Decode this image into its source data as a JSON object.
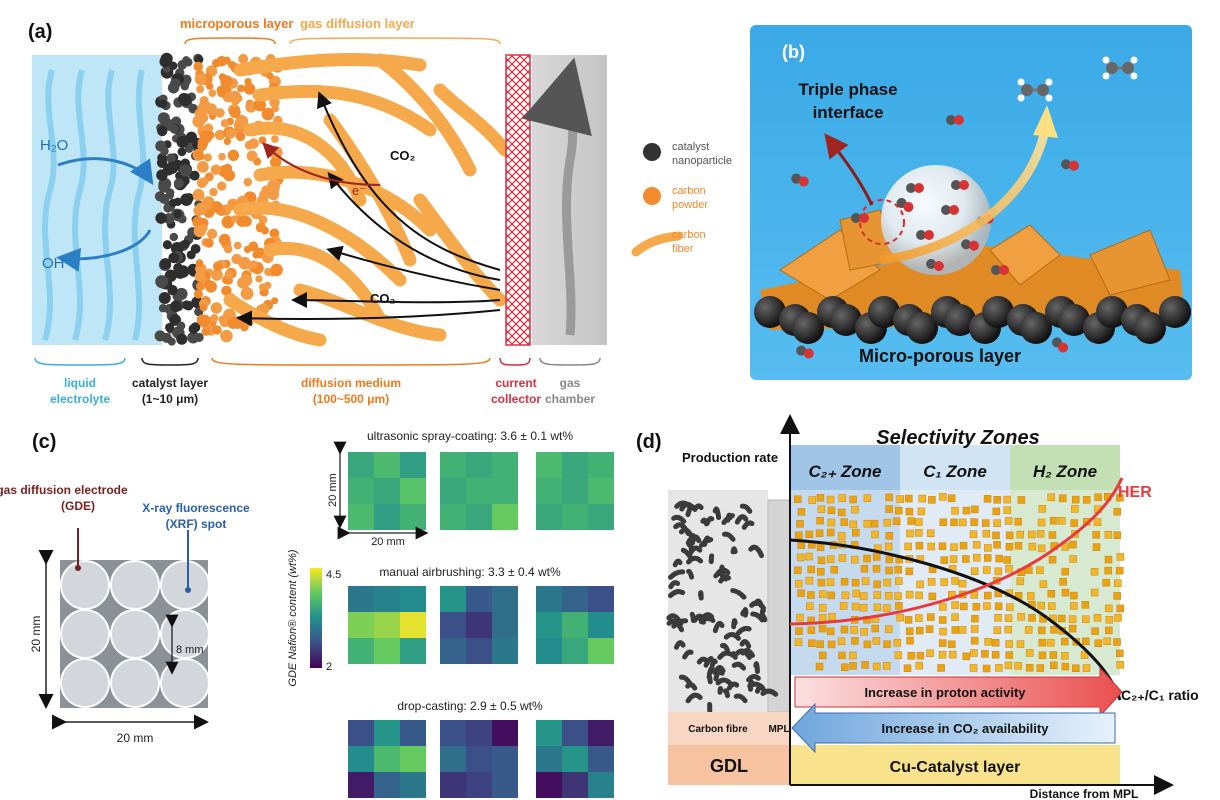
{
  "panel_a": {
    "label": "(a)",
    "top_labels": {
      "microporous": "microporous layer",
      "gdl": "gas diffusion layer"
    },
    "h2o": "H₂O",
    "oh": "OH⁻",
    "co2_1": "CO₂",
    "co2_2": "CO₂",
    "electron": "e⁻",
    "legend": [
      {
        "line1": "catalyst",
        "line2": "nanoparticle",
        "color": "#333333"
      },
      {
        "line1": "carbon",
        "line2": "powder",
        "color": "#f28a2e"
      },
      {
        "line1": "carbon",
        "line2": "fiber",
        "color": "#f6a94a"
      }
    ],
    "bottom_labels": [
      {
        "line1": "liquid",
        "line2": "electrolyte",
        "color": "#3aaee0"
      },
      {
        "line1": "catalyst layer",
        "line2": "(1~10 μm)",
        "color": "#222222"
      },
      {
        "line1": "diffusion medium",
        "line2": "(100~500 μm)",
        "color": "#f07a1a"
      },
      {
        "line1": "current",
        "line2": "collector",
        "color": "#d83040"
      },
      {
        "line1": "gas",
        "line2": "chamber",
        "color": "#888888"
      }
    ]
  },
  "panel_b": {
    "label": "(b)",
    "triple_line1": "Triple phase",
    "triple_line2": "interface",
    "mpl": "Micro-porous layer"
  },
  "panel_c": {
    "label": "(c)",
    "gde_line1": "gas diffusion electrode",
    "gde_line2": "(GDE)",
    "xrf_line1": "X-ray fluorescence",
    "xrf_line2": "(XRF) spot",
    "dim_20mm_v": "20 mm",
    "dim_20mm_h": "20 mm",
    "dim_8mm": "8 mm",
    "colorbar_label": "GDE Nafion® content (wt%)",
    "colorbar_max": "4.5",
    "colorbar_min": "2",
    "rows": [
      {
        "title": "ultrasonic spray-coating: 3.6 ± 0.1 wt%"
      },
      {
        "title": "manual airbrushing: 3.3 ± 0.4 wt%"
      },
      {
        "title": "drop-casting: 2.9 ± 0.5 wt%"
      }
    ],
    "heat_dim_v": "20 mm",
    "heat_dim_h": "20 mm",
    "heatmaps": [
      [
        [
          [
            3.5,
            3.7,
            3.4
          ],
          [
            3.6,
            3.5,
            3.8
          ],
          [
            3.7,
            3.4,
            3.6
          ]
        ],
        [
          [
            3.6,
            3.5,
            3.6
          ],
          [
            3.5,
            3.6,
            3.6
          ],
          [
            3.6,
            3.5,
            3.9
          ]
        ],
        [
          [
            3.7,
            3.5,
            3.6
          ],
          [
            3.6,
            3.5,
            3.7
          ],
          [
            3.5,
            3.6,
            3.5
          ]
        ]
      ],
      [
        [
          [
            3.0,
            3.1,
            3.2
          ],
          [
            4.0,
            4.1,
            4.4
          ],
          [
            3.6,
            3.9,
            3.4
          ]
        ],
        [
          [
            3.3,
            2.7,
            2.9
          ],
          [
            2.6,
            2.4,
            2.9
          ],
          [
            2.8,
            2.6,
            3.0
          ]
        ],
        [
          [
            3.0,
            2.8,
            2.6
          ],
          [
            3.3,
            3.6,
            3.2
          ],
          [
            3.2,
            3.5,
            3.9
          ]
        ]
      ],
      [
        [
          [
            2.6,
            3.3,
            2.7
          ],
          [
            3.2,
            3.7,
            3.9
          ],
          [
            2.2,
            2.8,
            3.0
          ]
        ],
        [
          [
            2.6,
            2.5,
            2.1
          ],
          [
            2.9,
            2.6,
            2.7
          ],
          [
            2.4,
            2.5,
            2.7
          ]
        ],
        [
          [
            3.3,
            2.6,
            2.2
          ],
          [
            3.0,
            3.3,
            2.7
          ],
          [
            2.1,
            2.4,
            3.1
          ]
        ]
      ]
    ]
  },
  "panel_d": {
    "label": "(d)",
    "title": "Selectivity Zones",
    "production_rate": "Production rate",
    "zones": [
      {
        "text": "C₂₊ Zone",
        "color": "#8fbbe3"
      },
      {
        "text": "C₁ Zone",
        "color": "#cfe3f3"
      },
      {
        "text": "H₂ Zone",
        "color": "#b9dba8"
      }
    ],
    "her": "HER",
    "ratio": "C₂₊/C₁ ratio",
    "proton": "Increase in proton activity",
    "co2": "Increase in CO₂ availability",
    "carbon_fibre": "Carbon fibre",
    "mpl": "MPL",
    "gdl": "GDL",
    "catalyst_layer": "Cu-Catalyst layer",
    "x_axis": "Distance from MPL"
  }
}
